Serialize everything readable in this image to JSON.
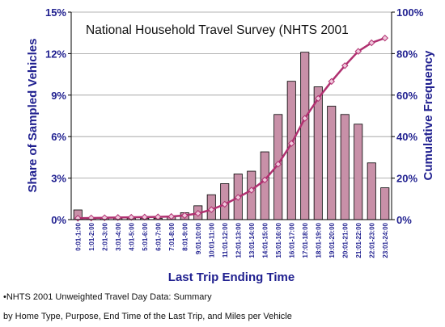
{
  "chart_data": {
    "type": "bar",
    "title": "National Household Travel Survey (NHTS 2001",
    "xlabel": "Last Trip Ending Time",
    "ylabel": "Share of Sampled Vehicles",
    "y2label": "Cumulative Frequency",
    "categories": [
      "0:01-1:00",
      "1:01-2:00",
      "2:01-3:00",
      "3:01-4:00",
      "4:01-5:00",
      "5:01-6:00",
      "6:01-7:00",
      "7:01-8:00",
      "8:01-9:00",
      "9:01-10:00",
      "10:01-11:00",
      "11:01-12:00",
      "12:01-13:00",
      "13:01-14:00",
      "14:01-15:00",
      "15:01-16:00",
      "16:01-17:00",
      "17:01-18:00",
      "18:01-19:00",
      "19:01-20:00",
      "20:01-21:00",
      "21:01-22:00",
      "22:01-23:00",
      "23:01-24:00"
    ],
    "ylim": [
      0,
      15
    ],
    "yticks": [
      "0%",
      "3%",
      "6%",
      "9%",
      "12%",
      "15%"
    ],
    "y2lim": [
      0,
      100
    ],
    "y2ticks": [
      "0%",
      "20%",
      "40%",
      "60%",
      "80%",
      "100%"
    ],
    "grid": true,
    "legend": "none",
    "series": [
      {
        "type": "bar",
        "axis": "left",
        "color": "#c890a8",
        "values": [
          0.7,
          0.1,
          0.1,
          0.1,
          0.1,
          0.1,
          0.1,
          0.2,
          0.5,
          1.0,
          1.8,
          2.6,
          3.3,
          3.5,
          4.9,
          7.6,
          10.0,
          12.1,
          9.6,
          8.2,
          7.6,
          6.9,
          4.1,
          2.3
        ]
      },
      {
        "type": "line",
        "axis": "right",
        "color": "#b03070",
        "values": [
          0.7,
          0.8,
          0.9,
          1.0,
          1.1,
          1.2,
          1.3,
          1.5,
          2.0,
          3.0,
          4.8,
          7.4,
          10.7,
          14.2,
          19.1,
          26.7,
          36.7,
          48.8,
          58.4,
          66.6,
          74.2,
          81.1,
          85.2,
          87.5
        ]
      }
    ]
  },
  "notes": [
    "•NHTS 2001 Unweighted Travel Day Data: Summary",
    " by Home Type, Purpose, End Time of the Last Trip, and Miles per Vehicle"
  ]
}
